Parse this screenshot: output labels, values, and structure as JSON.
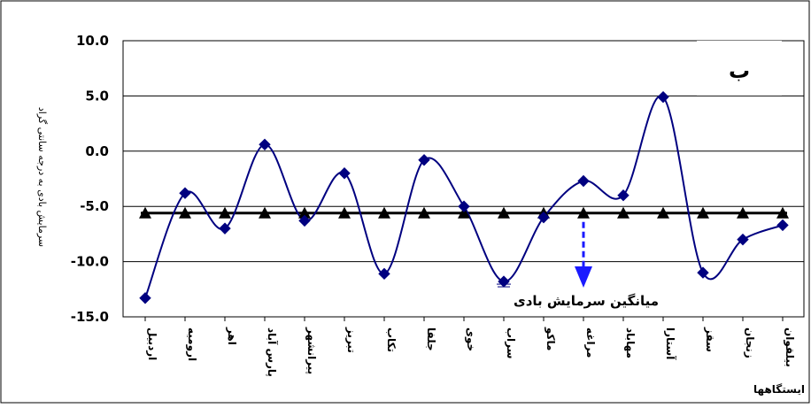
{
  "chart_data": {
    "type": "line",
    "title": "",
    "panel_label": "ب",
    "xlabel": "ایستگاهها",
    "ylabel": "سرمایش بادی به درجه سانتی گراد",
    "ylim": [
      -15,
      10
    ],
    "yticks": [
      "10.0",
      "5.0",
      "0.0",
      "-5.0",
      "-10.0",
      "-15.0"
    ],
    "ytick_values": [
      10,
      5,
      0,
      -5,
      -10,
      -15
    ],
    "grid": true,
    "categories": [
      "اردبیل",
      "ارومیه",
      "اهر",
      "پارس آباد",
      "پیرانشهر",
      "تبریز",
      "تکاب",
      "جلفا",
      "خوی",
      "سراب",
      "ماکو",
      "مراغه",
      "مهاباد",
      "آستارا",
      "سقز",
      "زنجان",
      "بیلقوان"
    ],
    "series": [
      {
        "name": "",
        "values": [
          -13.3,
          -3.8,
          -7.0,
          0.6,
          -6.3,
          -2.0,
          -11.1,
          -0.8,
          -5.0,
          -11.8,
          -6.0,
          -2.7,
          -4.0,
          4.9,
          -11.0,
          -8.0,
          -6.7
        ],
        "color": "#000080"
      },
      {
        "name": "",
        "values": [
          -5.6,
          -5.6,
          -5.6,
          -5.6,
          -5.6,
          -5.6,
          -5.6,
          -5.6,
          -5.6,
          -5.6,
          -5.6,
          -5.6,
          -5.6,
          -5.6,
          -5.6,
          -5.6,
          -5.6
        ],
        "color": "#000000"
      }
    ],
    "annotation": {
      "text": "میانگین سرمایش بادی",
      "arrow_color": "#1a1aff",
      "points_to": "مراغه"
    }
  }
}
